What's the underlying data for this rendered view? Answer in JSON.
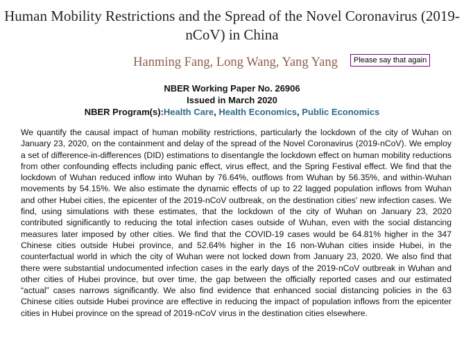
{
  "header": {
    "title": "Human Mobility Restrictions and the Spread of the Novel Coronavirus (2019-nCoV) in China",
    "authors": "Hanming Fang, Long Wang, Yang Yang",
    "tooltip": "Please say that again"
  },
  "meta": {
    "paper": "NBER Working Paper No. 26906",
    "issued": "Issued in March 2020",
    "program_label": "NBER Program(s):",
    "programs": [
      "Health Care",
      "Health Economics",
      "Public Economics"
    ],
    "program_separator": ", "
  },
  "abstract": "We quantify the causal impact of human mobility restrictions, particularly the lockdown of the city of Wuhan on January 23, 2020, on the containment and delay of the spread of the Novel Coronavirus (2019-nCoV). We employ a set of difference-in-differences (DID) estimations to disentangle the lockdown effect on human mobility reductions from other confounding effects including panic effect, virus effect, and the Spring Festival effect. We find that the lockdown of Wuhan reduced inflow into Wuhan by 76.64%, outflows from Wuhan by 56.35%, and within-Wuhan movements by 54.15%. We also estimate the dynamic effects of up to 22 lagged population inflows from Wuhan and other Hubei cities, the epicenter of the 2019-nCoV outbreak, on the destination cities' new infection cases. We find, using simulations with these estimates, that the lockdown of the city of Wuhan on January 23, 2020 contributed significantly to reducing the total infection cases outside of Wuhan, even with the social distancing measures later imposed by other cities. We find that the COVID-19 cases would be 64.81% higher in the 347 Chinese cities outside Hubei province, and 52.64% higher in the 16 non-Wuhan cities inside Hubei, in the counterfactual world in which the city of Wuhan were not locked down from January 23, 2020. We also find that there were substantial undocumented infection cases in the early days of the 2019-nCoV outbreak in Wuhan and other cities of Hubei province, but over time, the gap between the officially reported cases and our estimated “actual” cases narrows significantly. We also find evidence that enhanced social distancing policies in the 63 Chinese cities outside Hubei province are effective in reducing the impact of population inflows from the epicenter cities in Hubei province on the spread of 2019-nCoV virus in the destination cities elsewhere."
}
